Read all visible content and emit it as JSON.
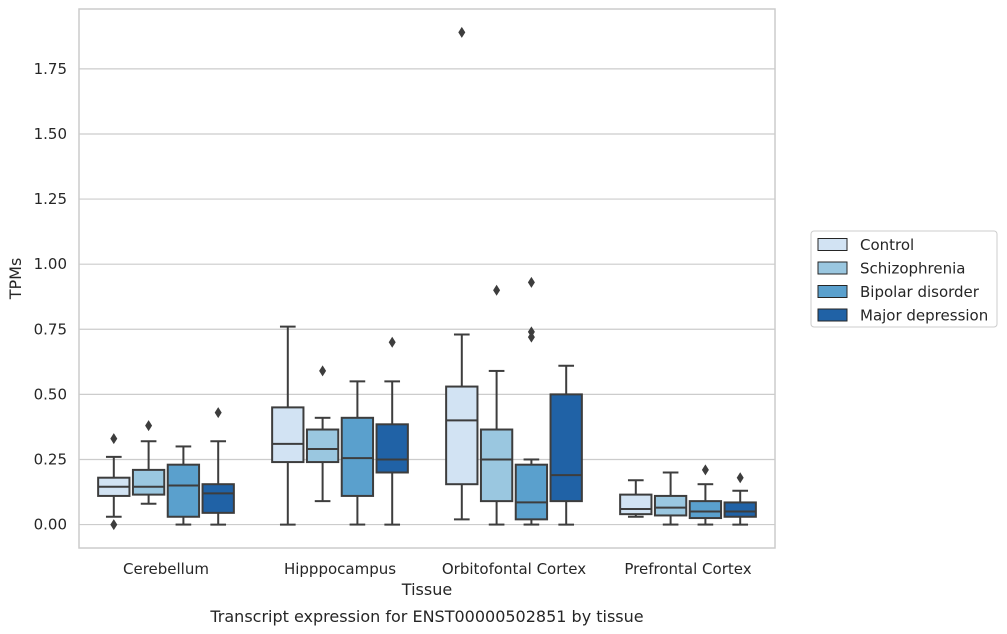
{
  "caption": "Transcript expression for ENST00000502851 by tissue",
  "chart_data": {
    "type": "box",
    "xlabel": "Tissue",
    "ylabel": "TPMs",
    "ylim": [
      -0.09,
      1.98
    ],
    "yticks": [
      "0.00",
      "0.25",
      "0.50",
      "0.75",
      "1.00",
      "1.25",
      "1.50",
      "1.75"
    ],
    "grid": true,
    "legend": {
      "position": "right"
    },
    "categories": [
      "Cerebellum",
      "Hipppocampus",
      "Orbitofontal Cortex",
      "Prefrontal Cortex"
    ],
    "series": [
      {
        "name": "Control",
        "color": "#d2e3f3",
        "boxes": [
          {
            "whislo": 0.03,
            "q1": 0.11,
            "med": 0.145,
            "q3": 0.18,
            "whishi": 0.26,
            "fliers": [
              0.33,
              0.0
            ]
          },
          {
            "whislo": 0.0,
            "q1": 0.24,
            "med": 0.31,
            "q3": 0.45,
            "whishi": 0.76,
            "fliers": []
          },
          {
            "whislo": 0.02,
            "q1": 0.155,
            "med": 0.4,
            "q3": 0.53,
            "whishi": 0.73,
            "fliers": [
              1.89
            ]
          },
          {
            "whislo": 0.03,
            "q1": 0.04,
            "med": 0.06,
            "q3": 0.115,
            "whishi": 0.17,
            "fliers": []
          }
        ]
      },
      {
        "name": "Schizophrenia",
        "color": "#9ac7e0",
        "boxes": [
          {
            "whislo": 0.08,
            "q1": 0.115,
            "med": 0.145,
            "q3": 0.21,
            "whishi": 0.32,
            "fliers": [
              0.38
            ]
          },
          {
            "whislo": 0.09,
            "q1": 0.24,
            "med": 0.29,
            "q3": 0.365,
            "whishi": 0.41,
            "fliers": [
              0.59
            ]
          },
          {
            "whislo": 0.0,
            "q1": 0.09,
            "med": 0.25,
            "q3": 0.365,
            "whishi": 0.59,
            "fliers": [
              0.9
            ]
          },
          {
            "whislo": 0.0,
            "q1": 0.035,
            "med": 0.065,
            "q3": 0.11,
            "whishi": 0.2,
            "fliers": []
          }
        ]
      },
      {
        "name": "Bipolar disorder",
        "color": "#5aa0cd",
        "boxes": [
          {
            "whislo": 0.0,
            "q1": 0.03,
            "med": 0.15,
            "q3": 0.23,
            "whishi": 0.3,
            "fliers": []
          },
          {
            "whislo": 0.0,
            "q1": 0.11,
            "med": 0.255,
            "q3": 0.41,
            "whishi": 0.55,
            "fliers": []
          },
          {
            "whislo": 0.0,
            "q1": 0.02,
            "med": 0.085,
            "q3": 0.23,
            "whishi": 0.25,
            "fliers": [
              0.93,
              0.74,
              0.72
            ]
          },
          {
            "whislo": 0.0,
            "q1": 0.025,
            "med": 0.05,
            "q3": 0.09,
            "whishi": 0.155,
            "fliers": [
              0.21
            ]
          }
        ]
      },
      {
        "name": "Major depression",
        "color": "#2062a6",
        "boxes": [
          {
            "whislo": 0.0,
            "q1": 0.045,
            "med": 0.12,
            "q3": 0.155,
            "whishi": 0.32,
            "fliers": [
              0.43
            ]
          },
          {
            "whislo": 0.0,
            "q1": 0.2,
            "med": 0.25,
            "q3": 0.385,
            "whishi": 0.55,
            "fliers": [
              0.7
            ]
          },
          {
            "whislo": 0.0,
            "q1": 0.09,
            "med": 0.19,
            "q3": 0.5,
            "whishi": 0.61,
            "fliers": []
          },
          {
            "whislo": 0.0,
            "q1": 0.03,
            "med": 0.05,
            "q3": 0.085,
            "whishi": 0.13,
            "fliers": [
              0.18
            ]
          }
        ]
      }
    ]
  }
}
